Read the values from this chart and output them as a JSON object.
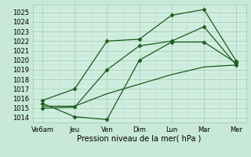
{
  "background_color": "#c8e8d8",
  "plot_bg_color": "#d0eee0",
  "grid_color": "#a0c8b0",
  "minor_grid_color": "#b8d8c8",
  "line_color": "#1a5c1a",
  "xlabel": "Pression niveau de la mer( hPa )",
  "ylim": [
    1013.5,
    1025.8
  ],
  "yticks": [
    1014,
    1015,
    1016,
    1017,
    1018,
    1019,
    1020,
    1021,
    1022,
    1023,
    1024,
    1025
  ],
  "xtick_labels": [
    "Ve6am",
    "Jeu",
    "Ven",
    "Dim",
    "Lun",
    "Mar",
    "Mer"
  ],
  "x_positions": [
    0,
    1,
    2,
    3,
    4,
    5,
    6
  ],
  "series1_x": [
    0,
    1,
    2,
    3,
    4,
    5,
    6
  ],
  "series1_y": [
    1015.0,
    1015.1,
    1019.0,
    1021.5,
    1022.0,
    1023.5,
    1019.5
  ],
  "series2_x": [
    0,
    1,
    2,
    3,
    4,
    5,
    6
  ],
  "series2_y": [
    1015.5,
    1014.1,
    1013.8,
    1020.0,
    1021.9,
    1021.9,
    1019.7
  ],
  "series3_x": [
    0,
    1,
    2,
    3,
    4,
    5,
    6
  ],
  "series3_y": [
    1015.8,
    1017.0,
    1022.0,
    1022.2,
    1024.7,
    1025.3,
    1019.9
  ],
  "series4_x": [
    0,
    1,
    2,
    3,
    4,
    5,
    6
  ],
  "series4_y": [
    1015.2,
    1015.2,
    1016.5,
    1017.5,
    1018.5,
    1019.3,
    1019.5
  ],
  "xlabel_fontsize": 7,
  "tick_fontsize": 6,
  "marker_size": 2.5,
  "linewidth": 0.9
}
